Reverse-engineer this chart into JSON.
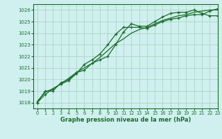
{
  "title": "Graphe pression niveau de la mer (hPa)",
  "background_color": "#cff0ee",
  "grid_color": "#b0d8cc",
  "line_color": "#1a6b2a",
  "xlim": [
    -0.5,
    23
  ],
  "ylim": [
    1017.5,
    1026.5
  ],
  "yticks": [
    1018,
    1019,
    1020,
    1021,
    1022,
    1023,
    1024,
    1025,
    1026
  ],
  "xticks": [
    0,
    1,
    2,
    3,
    4,
    5,
    6,
    7,
    8,
    9,
    10,
    11,
    12,
    13,
    14,
    15,
    16,
    17,
    18,
    19,
    20,
    21,
    22,
    23
  ],
  "s1_x": [
    0,
    1,
    2,
    3,
    4,
    5,
    6,
    7,
    8,
    9,
    10,
    11,
    12,
    13,
    14,
    15,
    16,
    17,
    18,
    19,
    20,
    21,
    22,
    23
  ],
  "s1_y": [
    1018.1,
    1018.9,
    1019.2,
    1019.6,
    1020.1,
    1020.6,
    1021.0,
    1021.4,
    1021.9,
    1022.5,
    1023.1,
    1023.5,
    1024.0,
    1024.3,
    1024.5,
    1024.8,
    1025.1,
    1025.3,
    1025.5,
    1025.6,
    1025.8,
    1025.9,
    1026.0,
    1026.0
  ],
  "s2_x": [
    0,
    1,
    2,
    3,
    4,
    5,
    6,
    7,
    8,
    9,
    10,
    11,
    12,
    13,
    14,
    15,
    16,
    17,
    18,
    19,
    20,
    21,
    22,
    23
  ],
  "s2_y": [
    1018.0,
    1018.7,
    1019.2,
    1019.6,
    1019.9,
    1020.5,
    1021.3,
    1021.7,
    1022.2,
    1023.0,
    1023.9,
    1024.5,
    1024.5,
    1024.5,
    1024.4,
    1024.7,
    1025.0,
    1025.2,
    1025.3,
    1025.5,
    1025.6,
    1025.6,
    1025.9,
    1026.1
  ],
  "s3_x": [
    0,
    1,
    2,
    3,
    4,
    5,
    6,
    7,
    8,
    9,
    10,
    11,
    12,
    13,
    14,
    15,
    16,
    17,
    18,
    19,
    20,
    21,
    22,
    23
  ],
  "s3_y": [
    1018.0,
    1019.0,
    1019.0,
    1019.7,
    1020.0,
    1020.6,
    1020.8,
    1021.4,
    1021.7,
    1022.0,
    1023.0,
    1024.1,
    1024.8,
    1024.6,
    1024.6,
    1025.0,
    1025.4,
    1025.7,
    1025.8,
    1025.8,
    1026.0,
    1025.7,
    1025.5,
    1025.5
  ]
}
